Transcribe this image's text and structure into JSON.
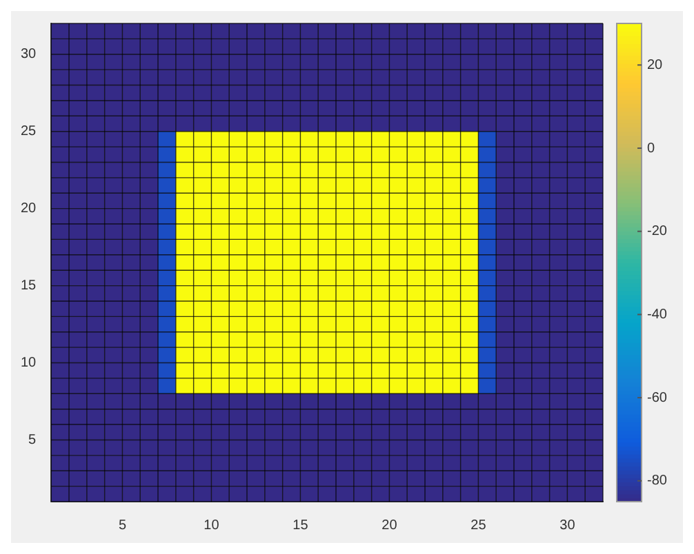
{
  "chart_data": {
    "type": "heatmap",
    "xlim": [
      1,
      32
    ],
    "ylim": [
      1,
      32
    ],
    "xticks": [
      5,
      10,
      15,
      20,
      25,
      30
    ],
    "yticks": [
      5,
      10,
      15,
      20,
      25,
      30
    ],
    "clim": [
      -85,
      30
    ],
    "grid": true,
    "cticks": [
      -80,
      -60,
      -40,
      -20,
      0,
      20
    ],
    "cells": [
      [
        -85,
        -85,
        -85,
        -85,
        -85,
        -85,
        -85,
        -85,
        -85,
        -85,
        -85,
        -85,
        -85,
        -85,
        -85,
        -85,
        -85,
        -85,
        -85,
        -85,
        -85,
        -85,
        -85,
        -85,
        -85,
        -85,
        -85,
        -85,
        -85,
        -85,
        -85
      ],
      [
        -85,
        -85,
        -85,
        -85,
        -85,
        -85,
        -85,
        -85,
        -85,
        -85,
        -85,
        -85,
        -85,
        -85,
        -85,
        -85,
        -85,
        -85,
        -85,
        -85,
        -85,
        -85,
        -85,
        -85,
        -85,
        -85,
        -85,
        -85,
        -85,
        -85,
        -85
      ],
      [
        -85,
        -85,
        -85,
        -85,
        -85,
        -85,
        -85,
        -85,
        -85,
        -85,
        -85,
        -85,
        -85,
        -85,
        -85,
        -85,
        -85,
        -85,
        -85,
        -85,
        -85,
        -85,
        -85,
        -85,
        -85,
        -85,
        -85,
        -85,
        -85,
        -85,
        -85
      ],
      [
        -85,
        -85,
        -85,
        -85,
        -85,
        -85,
        -85,
        -85,
        -85,
        -85,
        -85,
        -85,
        -85,
        -85,
        -85,
        -85,
        -85,
        -85,
        -85,
        -85,
        -85,
        -85,
        -85,
        -85,
        -85,
        -85,
        -85,
        -85,
        -85,
        -85,
        -85
      ],
      [
        -85,
        -85,
        -85,
        -85,
        -85,
        -85,
        -85,
        -85,
        -85,
        -85,
        -85,
        -85,
        -85,
        -85,
        -85,
        -85,
        -85,
        -85,
        -85,
        -85,
        -85,
        -85,
        -85,
        -85,
        -85,
        -85,
        -85,
        -85,
        -85,
        -85,
        -85
      ],
      [
        -85,
        -85,
        -85,
        -85,
        -85,
        -85,
        -85,
        -85,
        -85,
        -85,
        -85,
        -85,
        -85,
        -85,
        -85,
        -85,
        -85,
        -85,
        -85,
        -85,
        -85,
        -85,
        -85,
        -85,
        -85,
        -85,
        -85,
        -85,
        -85,
        -85,
        -85
      ],
      [
        -85,
        -85,
        -85,
        -85,
        -85,
        -85,
        -85,
        -85,
        -85,
        -85,
        -85,
        -85,
        -85,
        -85,
        -85,
        -85,
        -85,
        -85,
        -85,
        -85,
        -85,
        -85,
        -85,
        -85,
        -85,
        -85,
        -85,
        -85,
        -85,
        -85,
        -85
      ],
      [
        -85,
        -85,
        -85,
        -85,
        -85,
        -85,
        -75,
        30,
        30,
        30,
        30,
        30,
        30,
        30,
        30,
        30,
        30,
        30,
        30,
        30,
        30,
        30,
        30,
        30,
        -75,
        -85,
        -85,
        -85,
        -85,
        -85,
        -85
      ],
      [
        -85,
        -85,
        -85,
        -85,
        -85,
        -85,
        -75,
        30,
        30,
        30,
        30,
        30,
        30,
        30,
        30,
        30,
        30,
        30,
        30,
        30,
        30,
        30,
        30,
        30,
        -75,
        -85,
        -85,
        -85,
        -85,
        -85,
        -85
      ],
      [
        -85,
        -85,
        -85,
        -85,
        -85,
        -85,
        -75,
        30,
        30,
        30,
        30,
        30,
        30,
        30,
        30,
        30,
        30,
        30,
        30,
        30,
        30,
        30,
        30,
        30,
        -75,
        -85,
        -85,
        -85,
        -85,
        -85,
        -85
      ],
      [
        -85,
        -85,
        -85,
        -85,
        -85,
        -85,
        -75,
        30,
        30,
        30,
        30,
        30,
        30,
        30,
        30,
        30,
        30,
        30,
        30,
        30,
        30,
        30,
        30,
        30,
        -75,
        -85,
        -85,
        -85,
        -85,
        -85,
        -85
      ],
      [
        -85,
        -85,
        -85,
        -85,
        -85,
        -85,
        -75,
        30,
        30,
        30,
        30,
        30,
        30,
        30,
        30,
        30,
        30,
        30,
        30,
        30,
        30,
        30,
        30,
        30,
        -75,
        -85,
        -85,
        -85,
        -85,
        -85,
        -85
      ],
      [
        -85,
        -85,
        -85,
        -85,
        -85,
        -85,
        -75,
        30,
        30,
        30,
        30,
        30,
        30,
        30,
        30,
        30,
        30,
        30,
        30,
        30,
        30,
        30,
        30,
        30,
        -75,
        -85,
        -85,
        -85,
        -85,
        -85,
        -85
      ],
      [
        -85,
        -85,
        -85,
        -85,
        -85,
        -85,
        -75,
        30,
        30,
        30,
        30,
        30,
        30,
        30,
        30,
        30,
        30,
        30,
        30,
        30,
        30,
        30,
        30,
        30,
        -75,
        -85,
        -85,
        -85,
        -85,
        -85,
        -85
      ],
      [
        -85,
        -85,
        -85,
        -85,
        -85,
        -85,
        -75,
        30,
        30,
        30,
        30,
        30,
        30,
        30,
        30,
        30,
        30,
        30,
        30,
        30,
        30,
        30,
        30,
        30,
        -75,
        -85,
        -85,
        -85,
        -85,
        -85,
        -85
      ],
      [
        -85,
        -85,
        -85,
        -85,
        -85,
        -85,
        -75,
        30,
        30,
        30,
        30,
        30,
        30,
        30,
        30,
        30,
        30,
        30,
        30,
        30,
        30,
        30,
        30,
        30,
        -75,
        -85,
        -85,
        -85,
        -85,
        -85,
        -85
      ],
      [
        -85,
        -85,
        -85,
        -85,
        -85,
        -85,
        -75,
        30,
        30,
        30,
        30,
        30,
        30,
        30,
        30,
        30,
        30,
        30,
        30,
        30,
        30,
        30,
        30,
        30,
        -75,
        -85,
        -85,
        -85,
        -85,
        -85,
        -85
      ],
      [
        -85,
        -85,
        -85,
        -85,
        -85,
        -85,
        -75,
        30,
        30,
        30,
        30,
        30,
        30,
        30,
        30,
        30,
        30,
        30,
        30,
        30,
        30,
        30,
        30,
        30,
        -75,
        -85,
        -85,
        -85,
        -85,
        -85,
        -85
      ],
      [
        -85,
        -85,
        -85,
        -85,
        -85,
        -85,
        -75,
        30,
        30,
        30,
        30,
        30,
        30,
        30,
        30,
        30,
        30,
        30,
        30,
        30,
        30,
        30,
        30,
        30,
        -75,
        -85,
        -85,
        -85,
        -85,
        -85,
        -85
      ],
      [
        -85,
        -85,
        -85,
        -85,
        -85,
        -85,
        -75,
        30,
        30,
        30,
        30,
        30,
        30,
        30,
        30,
        30,
        30,
        30,
        30,
        30,
        30,
        30,
        30,
        30,
        -75,
        -85,
        -85,
        -85,
        -85,
        -85,
        -85
      ],
      [
        -85,
        -85,
        -85,
        -85,
        -85,
        -85,
        -75,
        30,
        30,
        30,
        30,
        30,
        30,
        30,
        30,
        30,
        30,
        30,
        30,
        30,
        30,
        30,
        30,
        30,
        -75,
        -85,
        -85,
        -85,
        -85,
        -85,
        -85
      ],
      [
        -85,
        -85,
        -85,
        -85,
        -85,
        -85,
        -75,
        30,
        30,
        30,
        30,
        30,
        30,
        30,
        30,
        30,
        30,
        30,
        30,
        30,
        30,
        30,
        30,
        30,
        -75,
        -85,
        -85,
        -85,
        -85,
        -85,
        -85
      ],
      [
        -85,
        -85,
        -85,
        -85,
        -85,
        -85,
        -75,
        30,
        30,
        30,
        30,
        30,
        30,
        30,
        30,
        30,
        30,
        30,
        30,
        30,
        30,
        30,
        30,
        30,
        -75,
        -85,
        -85,
        -85,
        -85,
        -85,
        -85
      ],
      [
        -85,
        -85,
        -85,
        -85,
        -85,
        -85,
        -75,
        30,
        30,
        30,
        30,
        30,
        30,
        30,
        30,
        30,
        30,
        30,
        30,
        30,
        30,
        30,
        30,
        30,
        -75,
        -85,
        -85,
        -85,
        -85,
        -85,
        -85
      ],
      [
        -85,
        -85,
        -85,
        -85,
        -85,
        -85,
        -85,
        -85,
        -85,
        -85,
        -85,
        -85,
        -85,
        -85,
        -85,
        -85,
        -85,
        -85,
        -85,
        -85,
        -85,
        -85,
        -85,
        -85,
        -85,
        -85,
        -85,
        -85,
        -85,
        -85,
        -85
      ],
      [
        -85,
        -85,
        -85,
        -85,
        -85,
        -85,
        -85,
        -85,
        -85,
        -85,
        -85,
        -85,
        -85,
        -85,
        -85,
        -85,
        -85,
        -85,
        -85,
        -85,
        -85,
        -85,
        -85,
        -85,
        -85,
        -85,
        -85,
        -85,
        -85,
        -85,
        -85
      ],
      [
        -85,
        -85,
        -85,
        -85,
        -85,
        -85,
        -85,
        -85,
        -85,
        -85,
        -85,
        -85,
        -85,
        -85,
        -85,
        -85,
        -85,
        -85,
        -85,
        -85,
        -85,
        -85,
        -85,
        -85,
        -85,
        -85,
        -85,
        -85,
        -85,
        -85,
        -85
      ],
      [
        -85,
        -85,
        -85,
        -85,
        -85,
        -85,
        -85,
        -85,
        -85,
        -85,
        -85,
        -85,
        -85,
        -85,
        -85,
        -85,
        -85,
        -85,
        -85,
        -85,
        -85,
        -85,
        -85,
        -85,
        -85,
        -85,
        -85,
        -85,
        -85,
        -85,
        -85
      ],
      [
        -85,
        -85,
        -85,
        -85,
        -85,
        -85,
        -85,
        -85,
        -85,
        -85,
        -85,
        -85,
        -85,
        -85,
        -85,
        -85,
        -85,
        -85,
        -85,
        -85,
        -85,
        -85,
        -85,
        -85,
        -85,
        -85,
        -85,
        -85,
        -85,
        -85,
        -85
      ],
      [
        -85,
        -85,
        -85,
        -85,
        -85,
        -85,
        -85,
        -85,
        -85,
        -85,
        -85,
        -85,
        -85,
        -85,
        -85,
        -85,
        -85,
        -85,
        -85,
        -85,
        -85,
        -85,
        -85,
        -85,
        -85,
        -85,
        -85,
        -85,
        -85,
        -85,
        -85
      ],
      [
        -85,
        -85,
        -85,
        -85,
        -85,
        -85,
        -85,
        -85,
        -85,
        -85,
        -85,
        -85,
        -85,
        -85,
        -85,
        -85,
        -85,
        -85,
        -85,
        -85,
        -85,
        -85,
        -85,
        -85,
        -85,
        -85,
        -85,
        -85,
        -85,
        -85,
        -85
      ]
    ]
  }
}
